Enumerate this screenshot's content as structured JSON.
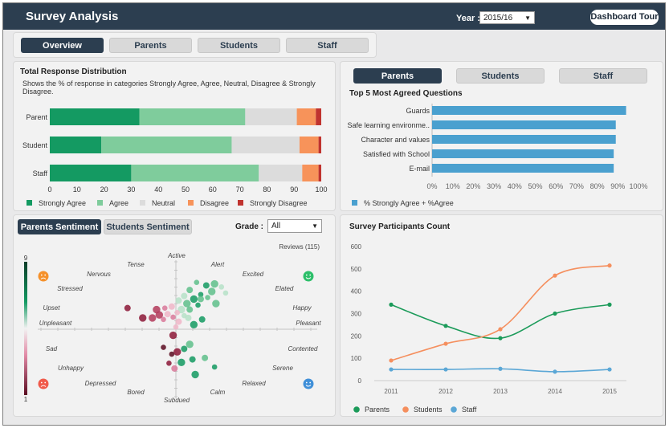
{
  "header": {
    "title": "Survey Analysis",
    "year_label": "Year :",
    "year_value": "2015/16",
    "tour_button": "Dashboard Tour"
  },
  "main_tabs": [
    {
      "label": "Overview",
      "active": true
    },
    {
      "label": "Parents",
      "active": false
    },
    {
      "label": "Students",
      "active": false
    },
    {
      "label": "Staff",
      "active": false
    }
  ],
  "colors": {
    "strongly_agree": "#149a62",
    "agree": "#7fcc9c",
    "neutral": "#dcdcdc",
    "disagree": "#f7935a",
    "strongly_disagree": "#c0332f",
    "hbar": "#4aa0cf",
    "parents_line": "#1c9b5a",
    "students_line": "#f58f5e",
    "staff_line": "#5ba7d6"
  },
  "distribution": {
    "title": "Total Response Distribution",
    "subtitle": "Shows the % of response in categories Strongly Agree, Agree, Neutral, Disagree & Strongly Disagree.",
    "legend": [
      "Strongly Agree",
      "Agree",
      "Neutral",
      "Disagree",
      "Strongly Disagree"
    ]
  },
  "top5": {
    "tabs": [
      {
        "label": "Parents",
        "active": true
      },
      {
        "label": "Students",
        "active": false
      },
      {
        "label": "Staff",
        "active": false
      }
    ],
    "title": "Top 5 Most Agreed Questions",
    "legend": "% Strongly Agree + %Agree"
  },
  "sentiment": {
    "tabs": [
      {
        "label": "Parents Sentiment",
        "active": true
      },
      {
        "label": "Students Sentiment",
        "active": false
      }
    ],
    "grade_label": "Grade :",
    "grade_value": "All",
    "reviews": "Reviews (115)",
    "scale_top": "9",
    "scale_bottom": "1",
    "labels": [
      "Active",
      "Alert",
      "Excited",
      "Elated",
      "Happy",
      "Pleasant",
      "Contented",
      "Serene",
      "Relaxed",
      "Calm",
      "Subdued",
      "Bored",
      "Depressed",
      "Unhappy",
      "Sad",
      "Unpleasant",
      "Upset",
      "Stressed",
      "Nervous",
      "Tense"
    ]
  },
  "participants": {
    "title": "Survey Participants Count"
  },
  "chart_data": [
    {
      "type": "bar",
      "stacked": true,
      "orientation": "horizontal",
      "title": "Total Response Distribution",
      "categories": [
        "Parent",
        "Student",
        "Staff"
      ],
      "series": [
        {
          "name": "Strongly Agree",
          "values": [
            33,
            19,
            30
          ]
        },
        {
          "name": "Agree",
          "values": [
            39,
            48,
            47
          ]
        },
        {
          "name": "Neutral",
          "values": [
            19,
            25,
            16
          ]
        },
        {
          "name": "Disagree",
          "values": [
            7,
            7,
            6
          ]
        },
        {
          "name": "Strongly Disagree",
          "values": [
            2,
            1,
            1
          ]
        }
      ],
      "xlim": [
        0,
        100
      ],
      "xticks": [
        0,
        10,
        20,
        30,
        40,
        50,
        60,
        70,
        80,
        90,
        100
      ]
    },
    {
      "type": "bar",
      "orientation": "horizontal",
      "title": "Top 5 Most Agreed Questions",
      "categories": [
        "Guards",
        "Safe learning environme..",
        "Character and values",
        "Satisfied with School",
        "E-mail"
      ],
      "values": [
        94,
        89,
        89,
        88,
        88
      ],
      "series_name": "% Strongly Agree + %Agree",
      "xlim": [
        0,
        100
      ],
      "xticks": [
        "0%",
        "10%",
        "20%",
        "30%",
        "40%",
        "50%",
        "60%",
        "70%",
        "80%",
        "90%",
        "100%"
      ]
    },
    {
      "type": "line",
      "title": "Survey Participants Count",
      "x": [
        2011,
        2012,
        2013,
        2014,
        2015
      ],
      "series": [
        {
          "name": "Parents",
          "values": [
            340,
            245,
            190,
            300,
            340
          ]
        },
        {
          "name": "Students",
          "values": [
            90,
            165,
            230,
            470,
            515
          ]
        },
        {
          "name": "Staff",
          "values": [
            50,
            50,
            53,
            40,
            50
          ]
        }
      ],
      "ylim": [
        0,
        600
      ],
      "yticks": [
        0,
        100,
        200,
        300,
        400,
        500,
        600
      ]
    },
    {
      "type": "scatter",
      "title": "Parents Sentiment",
      "xlim": [
        -10,
        10
      ],
      "ylim": [
        -10,
        10
      ],
      "points": [
        [
          1.5,
          6.2,
          7
        ],
        [
          2.2,
          5.8,
          8
        ],
        [
          2.8,
          6.0,
          7
        ],
        [
          3.3,
          5.6,
          6
        ],
        [
          1.0,
          5.2,
          7
        ],
        [
          2.6,
          5.0,
          7
        ],
        [
          1.8,
          4.6,
          8
        ],
        [
          0.6,
          4.4,
          6
        ],
        [
          1.3,
          4.0,
          8
        ],
        [
          2.3,
          4.2,
          7
        ],
        [
          0.2,
          3.8,
          6
        ],
        [
          0.8,
          3.4,
          7
        ],
        [
          1.6,
          3.2,
          8
        ],
        [
          -0.3,
          3.0,
          5
        ],
        [
          0.4,
          2.6,
          6
        ],
        [
          -0.8,
          2.8,
          4
        ],
        [
          1.0,
          2.6,
          7
        ],
        [
          -1.4,
          2.6,
          3
        ],
        [
          0.1,
          2.2,
          5
        ],
        [
          -0.6,
          2.0,
          5
        ],
        [
          -1.2,
          1.9,
          3
        ],
        [
          0.6,
          1.8,
          6
        ],
        [
          1.9,
          1.3,
          8
        ],
        [
          -1.7,
          1.5,
          3
        ],
        [
          -0.2,
          1.6,
          4
        ],
        [
          0.9,
          1.5,
          6
        ],
        [
          -2.4,
          1.5,
          2
        ],
        [
          -0.9,
          1.3,
          4
        ],
        [
          0.2,
          1.0,
          5
        ],
        [
          1.3,
          0.6,
          8
        ],
        [
          0.0,
          0.3,
          5
        ],
        [
          1.8,
          4.0,
          7
        ],
        [
          2.9,
          3.4,
          7
        ],
        [
          3.6,
          4.8,
          6
        ],
        [
          -3.5,
          2.8,
          2
        ],
        [
          -0.2,
          -0.8,
          2
        ],
        [
          -0.9,
          -2.4,
          1
        ],
        [
          0.6,
          -2.6,
          8
        ],
        [
          0.1,
          -3.0,
          2
        ],
        [
          -0.3,
          -3.3,
          1
        ],
        [
          1.2,
          -4.0,
          8
        ],
        [
          0.4,
          -4.4,
          8
        ],
        [
          -0.5,
          -4.5,
          2
        ],
        [
          2.1,
          -3.8,
          7
        ],
        [
          1.4,
          -6.0,
          8
        ],
        [
          2.8,
          -5.0,
          8
        ],
        [
          -0.1,
          -5.2,
          4
        ],
        [
          1.0,
          -2.0,
          7
        ]
      ]
    }
  ]
}
